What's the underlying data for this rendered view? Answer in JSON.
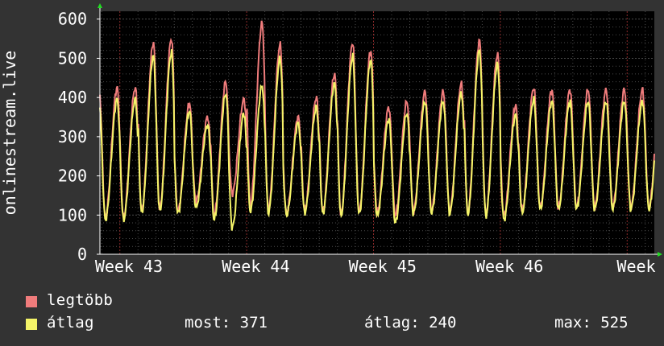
{
  "chart_data": {
    "type": "line",
    "ylabel": "onlinestream.live",
    "ylim": [
      0,
      620
    ],
    "yticks": [
      0,
      100,
      200,
      300,
      400,
      500,
      600
    ],
    "xticks": [
      {
        "label": "Week 43",
        "day": 0
      },
      {
        "label": "Week 44",
        "day": 7
      },
      {
        "label": "Week 45",
        "day": 14
      },
      {
        "label": "Week 46",
        "day": 21
      },
      {
        "label": "Week",
        "day": 28
      }
    ],
    "x_range_days": [
      -1.1,
      29.5
    ],
    "grid": true,
    "series": [
      {
        "name": "legtöbb",
        "color": "#f07c7c",
        "peaks": [
          425,
          540,
          550,
          385,
          350,
          440,
          395,
          590,
          535,
          350,
          400,
          460,
          540,
          520,
          375,
          390,
          415,
          415,
          435,
          545,
          510,
          380,
          425,
          420
        ],
        "troughs": [
          95,
          110,
          118,
          110,
          135,
          100,
          155,
          125,
          115,
          105,
          112,
          110,
          103,
          108,
          105,
          100,
          110,
          112,
          110,
          108,
          105,
          100,
          112,
          120
        ]
      },
      {
        "name": "átlag",
        "color": "#f4f468",
        "peaks": [
          395,
          505,
          515,
          365,
          330,
          410,
          360,
          430,
          500,
          335,
          375,
          435,
          505,
          495,
          345,
          360,
          390,
          390,
          410,
          520,
          485,
          355,
          395,
          390
        ],
        "troughs": [
          88,
          105,
          110,
          104,
          120,
          88,
          68,
          110,
          105,
          100,
          106,
          104,
          97,
          102,
          98,
          80,
          104,
          106,
          104,
          102,
          98,
          88,
          106,
          115
        ]
      }
    ],
    "legend": [
      {
        "label": "legtöbb",
        "color": "#f07c7c"
      },
      {
        "label": "átlag",
        "color": "#f4f468"
      }
    ],
    "stats": {
      "most": "most: 371",
      "atlag": "átlag: 240",
      "max": "max: 525"
    },
    "colors": {
      "background": "#333333",
      "plot_area": "#000000",
      "grid": "#4a4a4a",
      "week_marker": "#8a2a2a",
      "axis": "#ffffff",
      "arrow": "#22dd22"
    }
  }
}
